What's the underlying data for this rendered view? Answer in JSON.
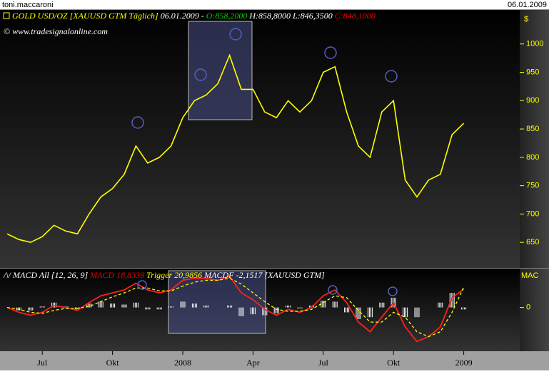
{
  "header": {
    "user": "toni.maccaroni",
    "date": "06.01.2009"
  },
  "chart_data": [
    {
      "type": "line",
      "title": "GOLD USD/OZ [XAUUSD GTM  Täglich]",
      "date": "06.01.2009 -",
      "open": "O:858,2000",
      "high": "H:858,8000",
      "low": "L:846,3500",
      "close": "C:848,1000",
      "watermark": "© www.tradesignalonline.com",
      "ylabel": "$",
      "categories": [
        null,
        null,
        null,
        "Jul",
        null,
        null,
        null,
        null,
        null,
        "Okt",
        null,
        null,
        null,
        null,
        null,
        "2008",
        null,
        null,
        null,
        null,
        null,
        "Apr",
        null,
        null,
        null,
        null,
        null,
        "Jul",
        null,
        null,
        null,
        null,
        null,
        "Okt",
        null,
        null,
        null,
        null,
        null,
        "2009"
      ],
      "series": [
        {
          "color": "#ffff00",
          "values": [
            665,
            655,
            650,
            660,
            680,
            670,
            665,
            700,
            730,
            745,
            770,
            820,
            790,
            800,
            820,
            870,
            900,
            910,
            930,
            980,
            920,
            920,
            880,
            870,
            900,
            880,
            900,
            950,
            960,
            880,
            820,
            800,
            880,
            900,
            760,
            730,
            760,
            770,
            840,
            860
          ]
        }
      ],
      "ylim": [
        605,
        1060
      ],
      "yticks": [
        650,
        700,
        750,
        800,
        850,
        900,
        950,
        1000
      ]
    },
    {
      "type": "macd",
      "title": "MACD All [12, 26, 9]",
      "instrument": "[XAUUSD GTM]",
      "ylabel": "MAC",
      "series": [
        {
          "name": "MACD",
          "label": "18,8339",
          "color": "#ff2020",
          "values": [
            0,
            -5,
            -8,
            -5,
            2,
            0,
            -3,
            5,
            12,
            15,
            18,
            25,
            18,
            15,
            18,
            28,
            30,
            30,
            28,
            32,
            15,
            8,
            -2,
            -8,
            -2,
            -5,
            0,
            12,
            18,
            5,
            -15,
            -25,
            -10,
            5,
            -20,
            -35,
            -30,
            -20,
            10,
            19
          ]
        },
        {
          "name": "Trigger",
          "label": "20,9856",
          "color": "#ffff00",
          "values": [
            0,
            -2,
            -5,
            -6,
            -3,
            -1,
            -1,
            1,
            6,
            11,
            15,
            20,
            20,
            17,
            17,
            22,
            26,
            28,
            28,
            30,
            24,
            15,
            6,
            -2,
            -4,
            -4,
            -2,
            5,
            12,
            10,
            -3,
            -15,
            -15,
            -5,
            -10,
            -25,
            -30,
            -25,
            -5,
            21
          ]
        },
        {
          "name": "MACDF",
          "label": "-2,1517",
          "color": "#ffffff",
          "values": [
            0,
            -3,
            -3,
            1,
            5,
            1,
            -2,
            4,
            6,
            4,
            3,
            5,
            -2,
            -2,
            1,
            6,
            4,
            2,
            0,
            2,
            -9,
            -7,
            -8,
            -6,
            2,
            -1,
            2,
            7,
            6,
            -5,
            -12,
            -10,
            5,
            10,
            -10,
            -10,
            0,
            5,
            15,
            -2
          ]
        }
      ],
      "ylim": [
        -45,
        40
      ],
      "yticks": [
        0
      ]
    }
  ]
}
